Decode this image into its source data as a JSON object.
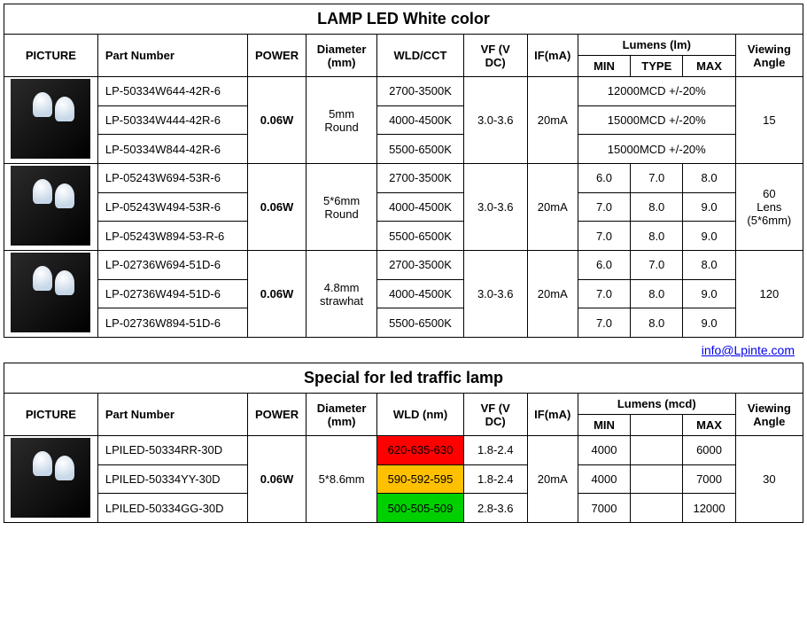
{
  "table1": {
    "title": "LAMP  LED White color",
    "headers": {
      "picture": "PICTURE",
      "part": "Part Number",
      "power": "POWER",
      "diameter": "Diameter (mm)",
      "wld": "WLD/CCT",
      "vf": "VF (V DC)",
      "if": "IF(mA)",
      "lumens": "Lumens (lm)",
      "min": "MIN",
      "type": "TYPE",
      "max": "MAX",
      "angle": "Viewing Angle"
    },
    "groups": [
      {
        "power": "0.06W",
        "diameter": "5mm Round",
        "vf": "3.0-3.6",
        "if": "20mA",
        "angle": "15",
        "rows": [
          {
            "part": "LP-50334W644-42R-6",
            "wld": "2700-3500K",
            "lumens_merged": "12000MCD +/-20%"
          },
          {
            "part": "LP-50334W444-42R-6",
            "wld": "4000-4500K",
            "lumens_merged": "15000MCD +/-20%"
          },
          {
            "part": "LP-50334W844-42R-6",
            "wld": "5500-6500K",
            "lumens_merged": "15000MCD +/-20%"
          }
        ]
      },
      {
        "power": "0.06W",
        "diameter": "5*6mm Round",
        "vf": "3.0-3.6",
        "if": "20mA",
        "angle": "60\nLens (5*6mm)",
        "rows": [
          {
            "part": "LP-05243W694-53R-6",
            "wld": "2700-3500K",
            "min": "6.0",
            "type": "7.0",
            "max": "8.0"
          },
          {
            "part": "LP-05243W494-53R-6",
            "wld": "4000-4500K",
            "min": "7.0",
            "type": "8.0",
            "max": "9.0"
          },
          {
            "part": "LP-05243W894-53-R-6",
            "wld": "5500-6500K",
            "min": "7.0",
            "type": "8.0",
            "max": "9.0"
          }
        ]
      },
      {
        "power": "0.06W",
        "diameter": "4.8mm strawhat",
        "vf": "3.0-3.6",
        "if": "20mA",
        "angle": "120",
        "rows": [
          {
            "part": "LP-02736W694-51D-6",
            "wld": "2700-3500K",
            "min": "6.0",
            "type": "7.0",
            "max": "8.0"
          },
          {
            "part": "LP-02736W494-51D-6",
            "wld": "4000-4500K",
            "min": "7.0",
            "type": "8.0",
            "max": "9.0"
          },
          {
            "part": "LP-02736W894-51D-6",
            "wld": "5500-6500K",
            "min": "7.0",
            "type": "8.0",
            "max": "9.0"
          }
        ]
      }
    ]
  },
  "contact": {
    "email": "info@Lpinte.com"
  },
  "table2": {
    "title": "Special for led traffic lamp",
    "headers": {
      "picture": "PICTURE",
      "part": "Part Number",
      "power": "POWER",
      "diameter": "Diameter (mm)",
      "wld": "WLD (nm)",
      "vf": "VF (V DC)",
      "if": "IF(mA)",
      "lumens": "Lumens (mcd)",
      "min": "MIN",
      "max": "MAX",
      "angle": "Viewing Angle"
    },
    "power": "0.06W",
    "diameter": "5*8.6mm",
    "if": "20mA",
    "angle": "30",
    "rows": [
      {
        "part": "LPILED-50334RR-30D",
        "wld": "620-635-630",
        "wld_bg": "#ff0000",
        "vf": "1.8-2.4",
        "min": "4000",
        "max": "6000"
      },
      {
        "part": "LPILED-50334YY-30D",
        "wld": "590-592-595",
        "wld_bg": "#ffc000",
        "vf": "1.8-2.4",
        "min": "4000",
        "max": "7000"
      },
      {
        "part": "LPILED-50334GG-30D",
        "wld": "500-505-509",
        "wld_bg": "#00d000",
        "vf": "2.8-3.6",
        "min": "7000",
        "max": "12000"
      }
    ]
  },
  "colwidths": {
    "picture": "100px",
    "part": "160px",
    "power": "62px",
    "diameter": "76px",
    "wld": "92px",
    "vf": "68px",
    "if": "54px",
    "lumens_sub": "56px",
    "angle": "72px"
  }
}
